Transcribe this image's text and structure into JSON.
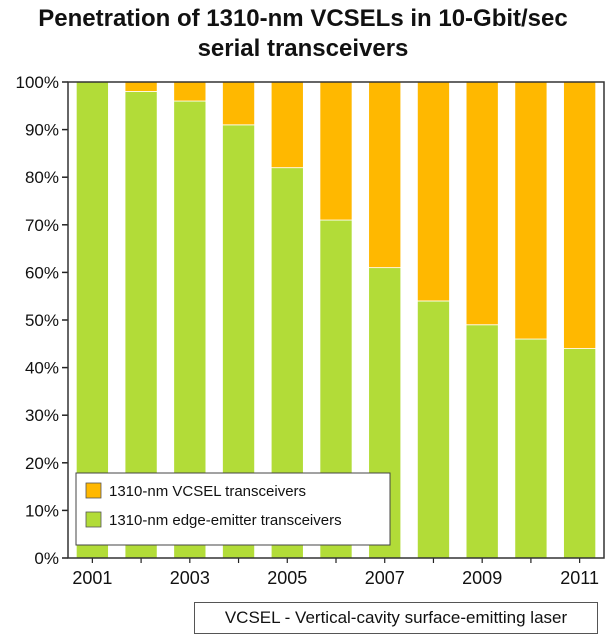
{
  "title_lines": [
    "Penetration of 1310-nm VCSELs in 10-Gbit/sec",
    "serial transceivers"
  ],
  "footnote": "VCSEL - Vertical-cavity surface-emitting laser",
  "colors": {
    "vcsel": "#FFB800",
    "edge": "#B2DC38",
    "plot_bg": "#ffffff",
    "frame": "#333333"
  },
  "chart_data": {
    "type": "bar",
    "stacked": true,
    "title": "Penetration of 1310-nm VCSELs in 10-Gbit/sec serial transceivers",
    "categories": [
      "2001",
      "2002",
      "2003",
      "2004",
      "2005",
      "2006",
      "2007",
      "2008",
      "2009",
      "2010",
      "2011"
    ],
    "x_tick_labels": [
      "2001",
      "",
      "2003",
      "",
      "2005",
      "",
      "2007",
      "",
      "2009",
      "",
      "2011"
    ],
    "y_ticks": [
      0,
      10,
      20,
      30,
      40,
      50,
      60,
      70,
      80,
      90,
      100
    ],
    "y_tick_labels": [
      "0%",
      "10%",
      "20%",
      "30%",
      "40%",
      "50%",
      "60%",
      "70%",
      "80%",
      "90%",
      "100%"
    ],
    "ylim": [
      0,
      100
    ],
    "xlabel": "",
    "ylabel": "",
    "grid": false,
    "legend_position": "bottom-left",
    "series": [
      {
        "name": "1310-nm VCSEL transceivers",
        "color": "#FFB800",
        "values": [
          0,
          2,
          4,
          9,
          18,
          29,
          39,
          46,
          51,
          54,
          56
        ]
      },
      {
        "name": "1310-nm edge-emitter transceivers",
        "color": "#B2DC38",
        "values": [
          100,
          98,
          96,
          91,
          82,
          71,
          61,
          54,
          49,
          46,
          44
        ]
      }
    ]
  }
}
